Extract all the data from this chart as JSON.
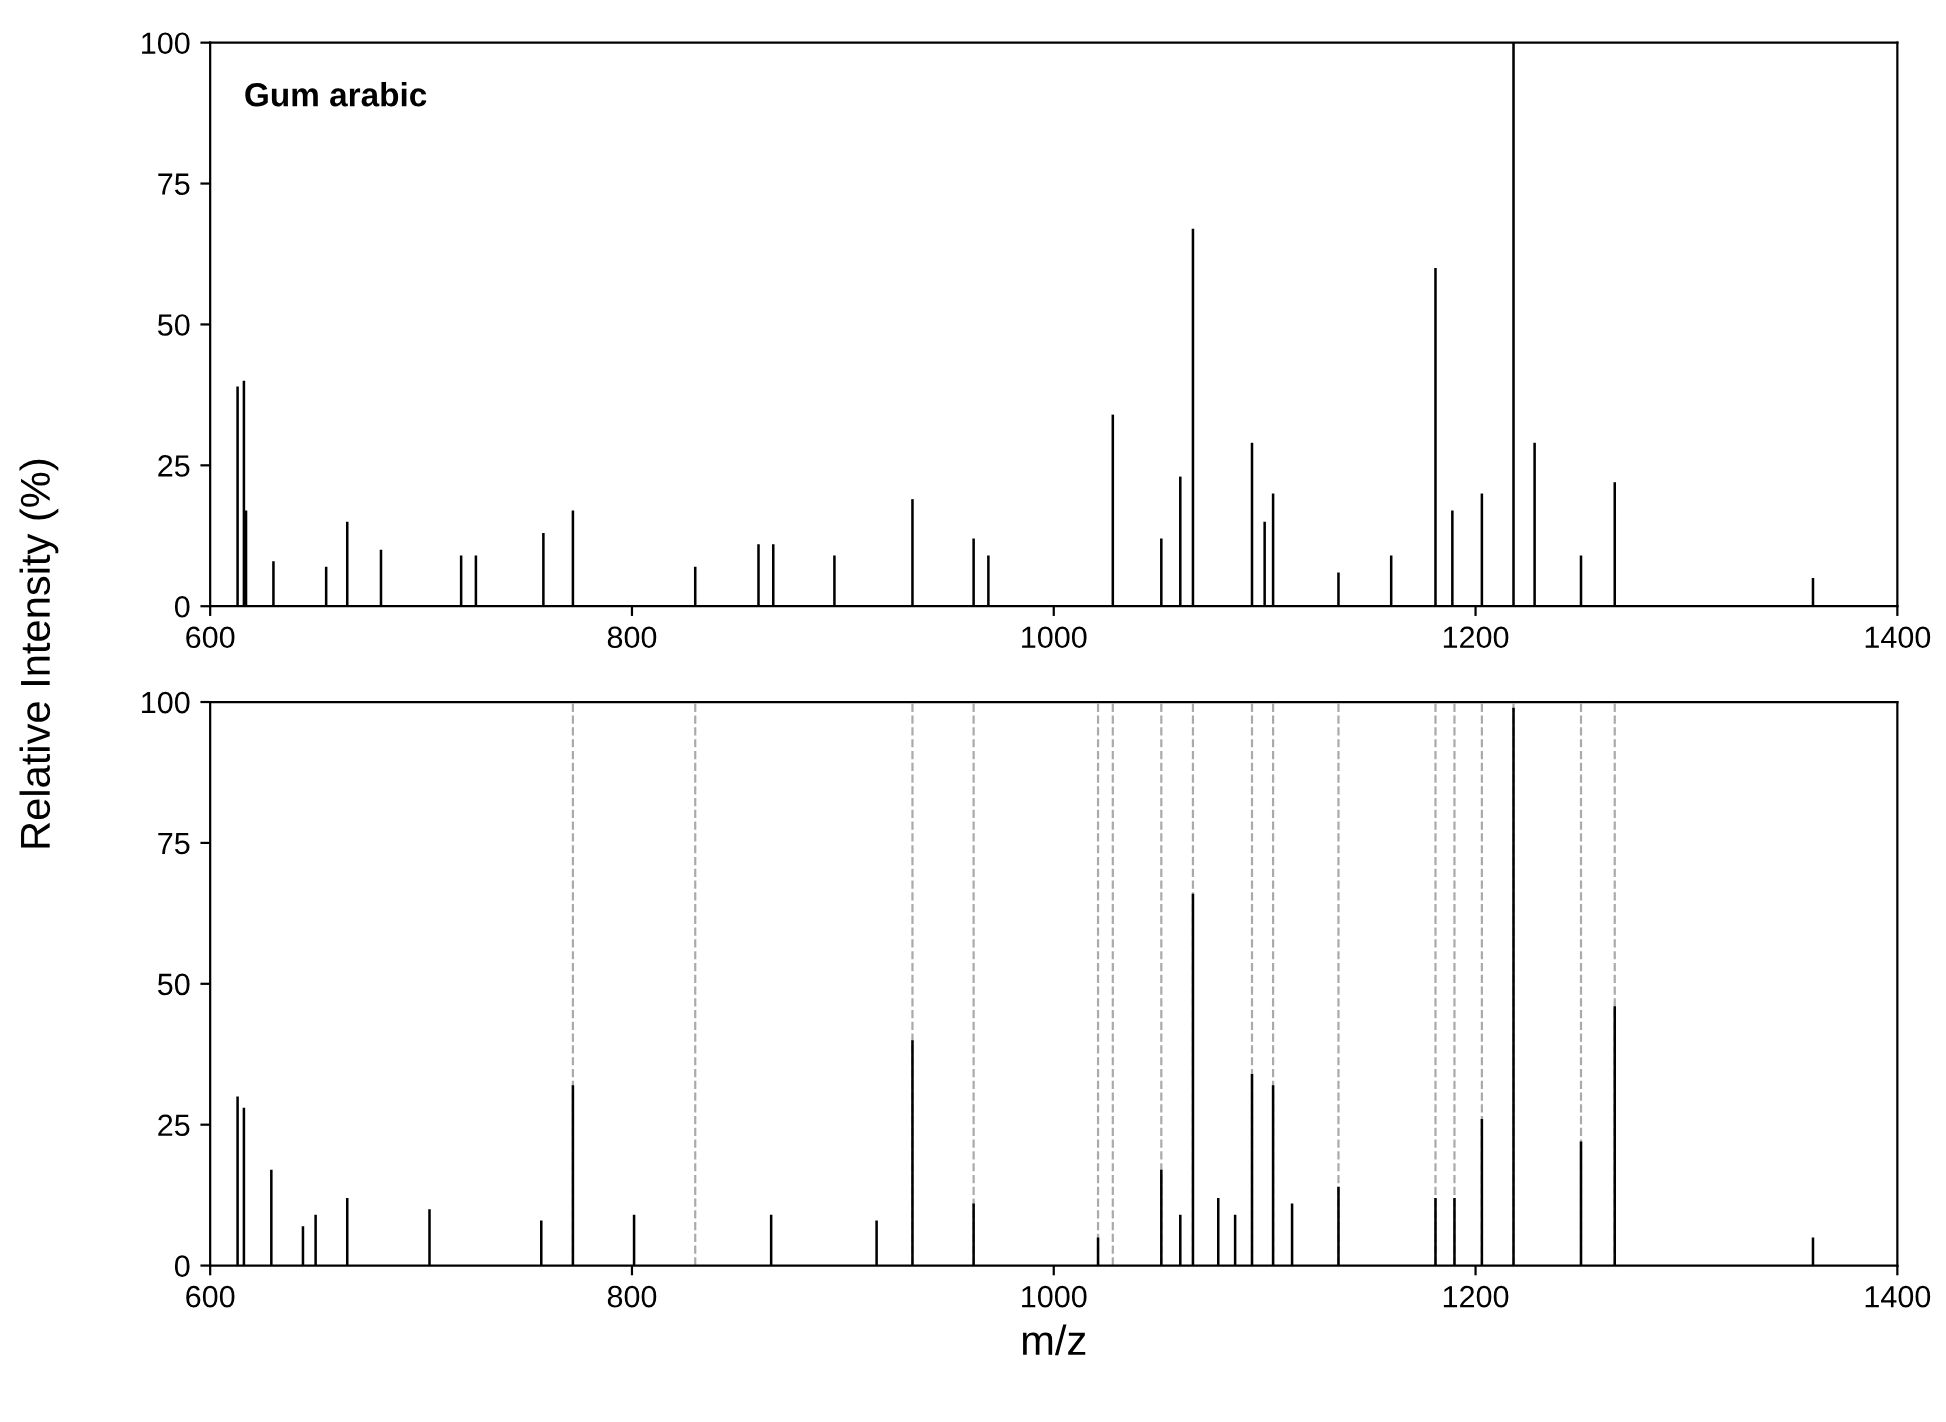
{
  "chart_data": [
    {
      "type": "bar",
      "title": "Gum arabic",
      "ylabel": "Relative Intensity (%)",
      "color": "#000000",
      "x": [
        613,
        616,
        617,
        630,
        655,
        665,
        681,
        719,
        726,
        758,
        772,
        830,
        860,
        867,
        896,
        933,
        962,
        969,
        1028,
        1051,
        1060,
        1066,
        1094,
        1100,
        1104,
        1135,
        1160,
        1181,
        1189,
        1203,
        1218,
        1228,
        1250,
        1266,
        1360
      ],
      "values": [
        39,
        40,
        17,
        8,
        7,
        15,
        10,
        9,
        9,
        13,
        17,
        7,
        11,
        11,
        9,
        19,
        12,
        9,
        34,
        12,
        23,
        67,
        29,
        15,
        20,
        6,
        9,
        60,
        17,
        20,
        100,
        29,
        9,
        22,
        5
      ],
      "xlim": [
        600,
        1400
      ],
      "xticks": [
        600,
        800,
        1000,
        1200,
        1400
      ],
      "ylim": [
        0,
        100
      ],
      "yticks": [
        0,
        25,
        50,
        75,
        100
      ],
      "grid": false,
      "legend": false
    },
    {
      "type": "bar",
      "xlabel": "m/z",
      "color": "#000000",
      "x": [
        613,
        616,
        629,
        644,
        650,
        665,
        704,
        757,
        772,
        801,
        866,
        916,
        933,
        962,
        1021,
        1051,
        1060,
        1066,
        1078,
        1086,
        1094,
        1104,
        1113,
        1135,
        1181,
        1190,
        1203,
        1218,
        1250,
        1266,
        1360
      ],
      "values": [
        30,
        28,
        17,
        7,
        9,
        12,
        10,
        8,
        32,
        9,
        9,
        8,
        40,
        11,
        5,
        17,
        9,
        66,
        12,
        9,
        34,
        32,
        11,
        14,
        12,
        12,
        26,
        99,
        22,
        46,
        5
      ],
      "xlim": [
        600,
        1400
      ],
      "xticks": [
        600,
        800,
        1000,
        1200,
        1400
      ],
      "ylim": [
        0,
        100
      ],
      "yticks": [
        0,
        25,
        50,
        75,
        100
      ],
      "grid": false,
      "legend": false,
      "ref_lines": [
        {
          "axis": "x",
          "value": 772,
          "color": "#aaaaaa",
          "line_style": "dashed"
        },
        {
          "axis": "x",
          "value": 830,
          "color": "#aaaaaa",
          "line_style": "dashed"
        },
        {
          "axis": "x",
          "value": 933,
          "color": "#aaaaaa",
          "line_style": "dashed"
        },
        {
          "axis": "x",
          "value": 962,
          "color": "#aaaaaa",
          "line_style": "dashed"
        },
        {
          "axis": "x",
          "value": 1021,
          "color": "#aaaaaa",
          "line_style": "dashed"
        },
        {
          "axis": "x",
          "value": 1028,
          "color": "#aaaaaa",
          "line_style": "dashed"
        },
        {
          "axis": "x",
          "value": 1051,
          "color": "#aaaaaa",
          "line_style": "dashed"
        },
        {
          "axis": "x",
          "value": 1066,
          "color": "#aaaaaa",
          "line_style": "dashed"
        },
        {
          "axis": "x",
          "value": 1094,
          "color": "#aaaaaa",
          "line_style": "dashed"
        },
        {
          "axis": "x",
          "value": 1104,
          "color": "#aaaaaa",
          "line_style": "dashed"
        },
        {
          "axis": "x",
          "value": 1135,
          "color": "#aaaaaa",
          "line_style": "dashed"
        },
        {
          "axis": "x",
          "value": 1181,
          "color": "#aaaaaa",
          "line_style": "dashed"
        },
        {
          "axis": "x",
          "value": 1190,
          "color": "#aaaaaa",
          "line_style": "dashed"
        },
        {
          "axis": "x",
          "value": 1203,
          "color": "#aaaaaa",
          "line_style": "dashed"
        },
        {
          "axis": "x",
          "value": 1218,
          "color": "#aaaaaa",
          "line_style": "dashed"
        },
        {
          "axis": "x",
          "value": 1250,
          "color": "#aaaaaa",
          "line_style": "dashed"
        },
        {
          "axis": "x",
          "value": 1266,
          "color": "#aaaaaa",
          "line_style": "dashed"
        }
      ]
    }
  ]
}
